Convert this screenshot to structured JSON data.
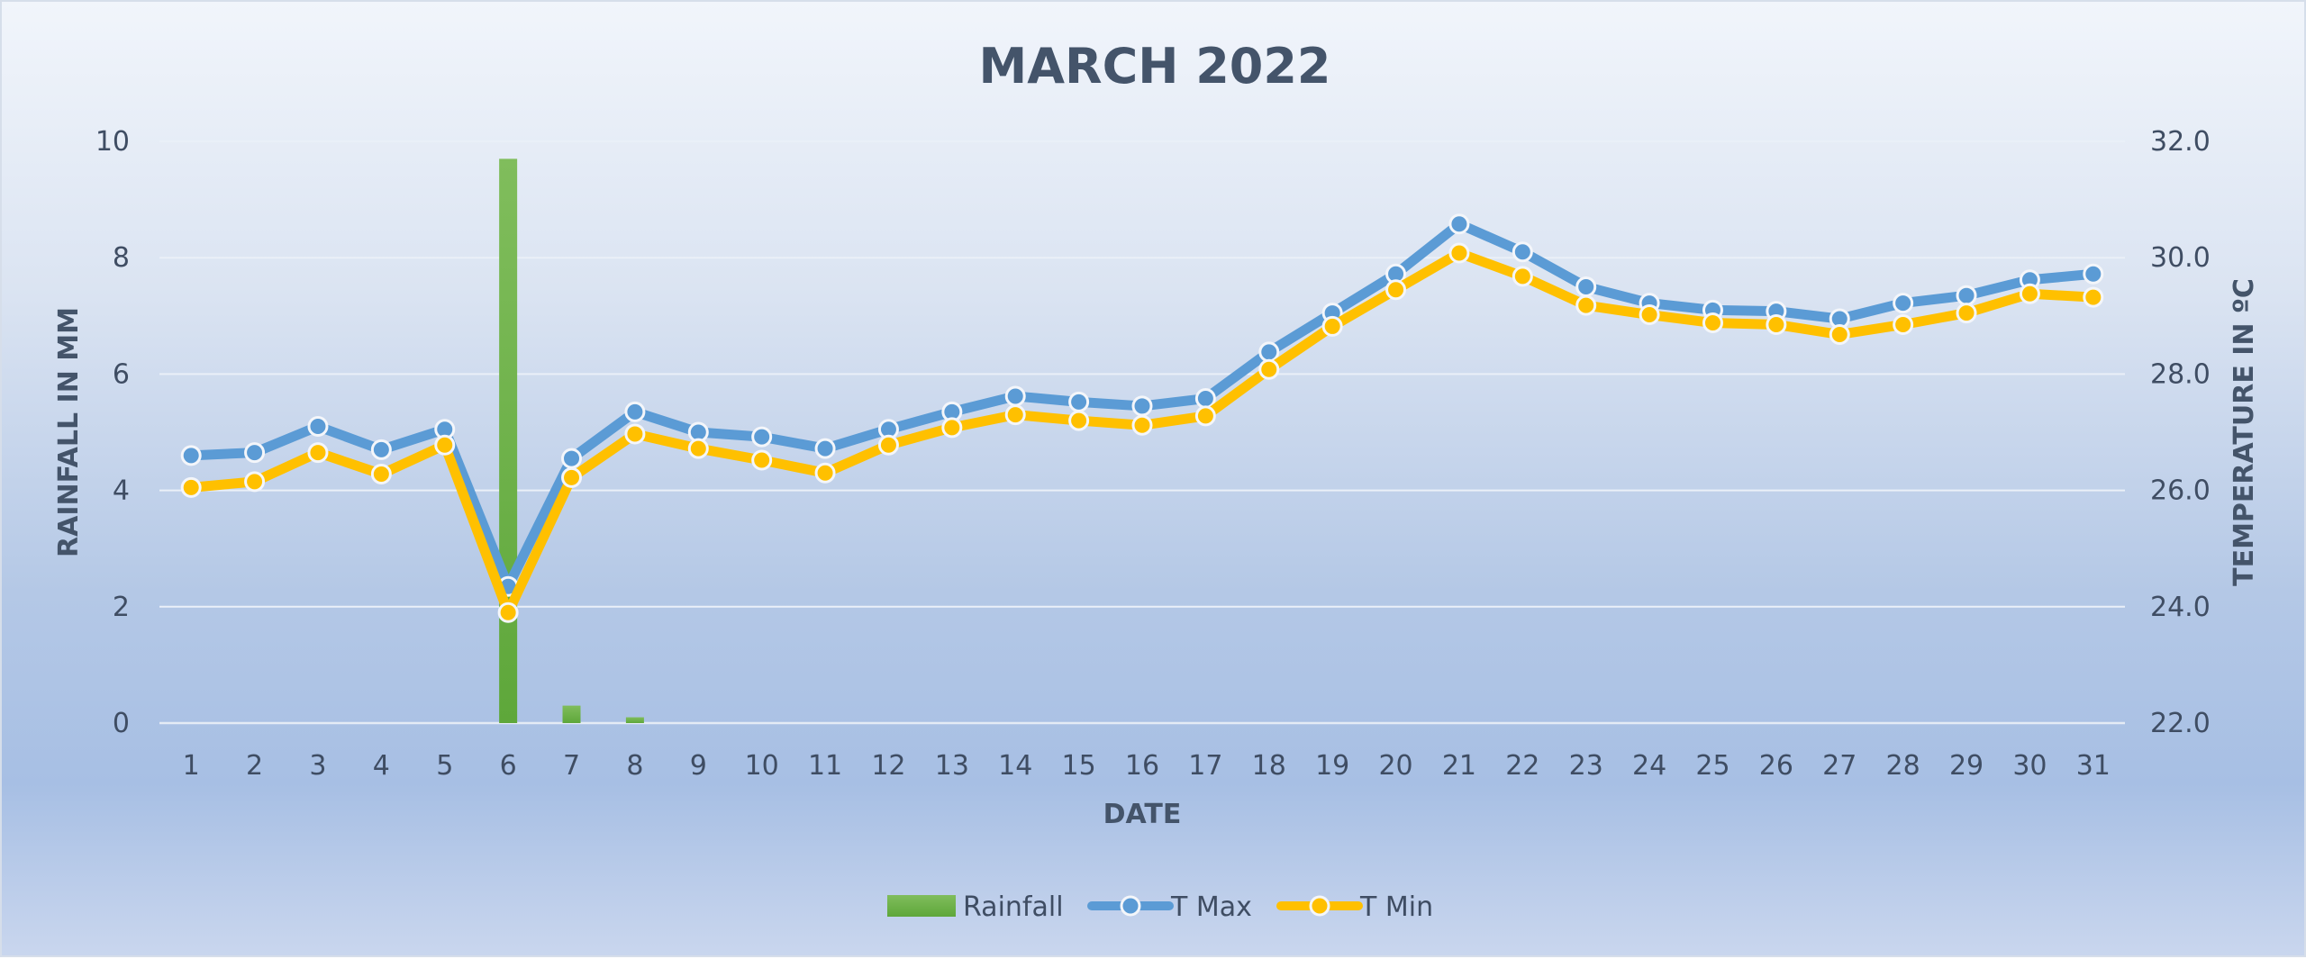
{
  "chart_data": {
    "type": "bar+line",
    "title": "MARCH 2022",
    "xlabel": "DATE",
    "ylabel": "RAINFALL IN MM",
    "y2label": "TEMPERATURE IN ºC",
    "ylim": [
      0,
      10
    ],
    "y2lim": [
      22.0,
      32.0
    ],
    "yticks": [
      "0",
      "2",
      "4",
      "6",
      "8",
      "10"
    ],
    "y2ticks": [
      "22.0",
      "24.0",
      "26.0",
      "28.0",
      "30.0",
      "32.0"
    ],
    "grid": true,
    "legend_position": "bottom",
    "categories": [
      "1",
      "2",
      "3",
      "4",
      "5",
      "6",
      "7",
      "8",
      "9",
      "10",
      "11",
      "12",
      "13",
      "14",
      "15",
      "16",
      "17",
      "18",
      "19",
      "20",
      "21",
      "22",
      "23",
      "24",
      "25",
      "26",
      "27",
      "28",
      "29",
      "30",
      "31"
    ],
    "series": [
      {
        "name": "Rainfall",
        "type": "bar",
        "axis": "left",
        "color": "#6db04a",
        "values": [
          0,
          0,
          0,
          0,
          0,
          9.7,
          0.3,
          0.1,
          0,
          0,
          0,
          0,
          0,
          0,
          0,
          0,
          0,
          0,
          0,
          0,
          0,
          0,
          0,
          0,
          0,
          0,
          0,
          0,
          0,
          0,
          0
        ]
      },
      {
        "name": "T Max",
        "type": "line",
        "axis": "right",
        "color": "#5b9bd5",
        "values": [
          26.6,
          26.65,
          27.1,
          26.7,
          27.05,
          24.35,
          26.55,
          27.35,
          27.0,
          26.92,
          26.72,
          27.05,
          27.35,
          27.62,
          27.52,
          27.45,
          27.58,
          28.38,
          29.05,
          29.72,
          30.58,
          30.1,
          29.5,
          29.22,
          29.1,
          29.08,
          28.95,
          29.22,
          29.35,
          29.62,
          29.72
        ]
      },
      {
        "name": "T Min",
        "type": "line",
        "axis": "right",
        "color": "#ffc000",
        "values": [
          26.05,
          26.15,
          26.65,
          26.28,
          26.78,
          23.9,
          26.22,
          26.97,
          26.72,
          26.52,
          26.3,
          26.78,
          27.08,
          27.3,
          27.2,
          27.12,
          27.28,
          28.08,
          28.82,
          29.45,
          30.08,
          29.68,
          29.18,
          29.02,
          28.88,
          28.85,
          28.68,
          28.85,
          29.05,
          29.38,
          29.32
        ]
      }
    ]
  }
}
